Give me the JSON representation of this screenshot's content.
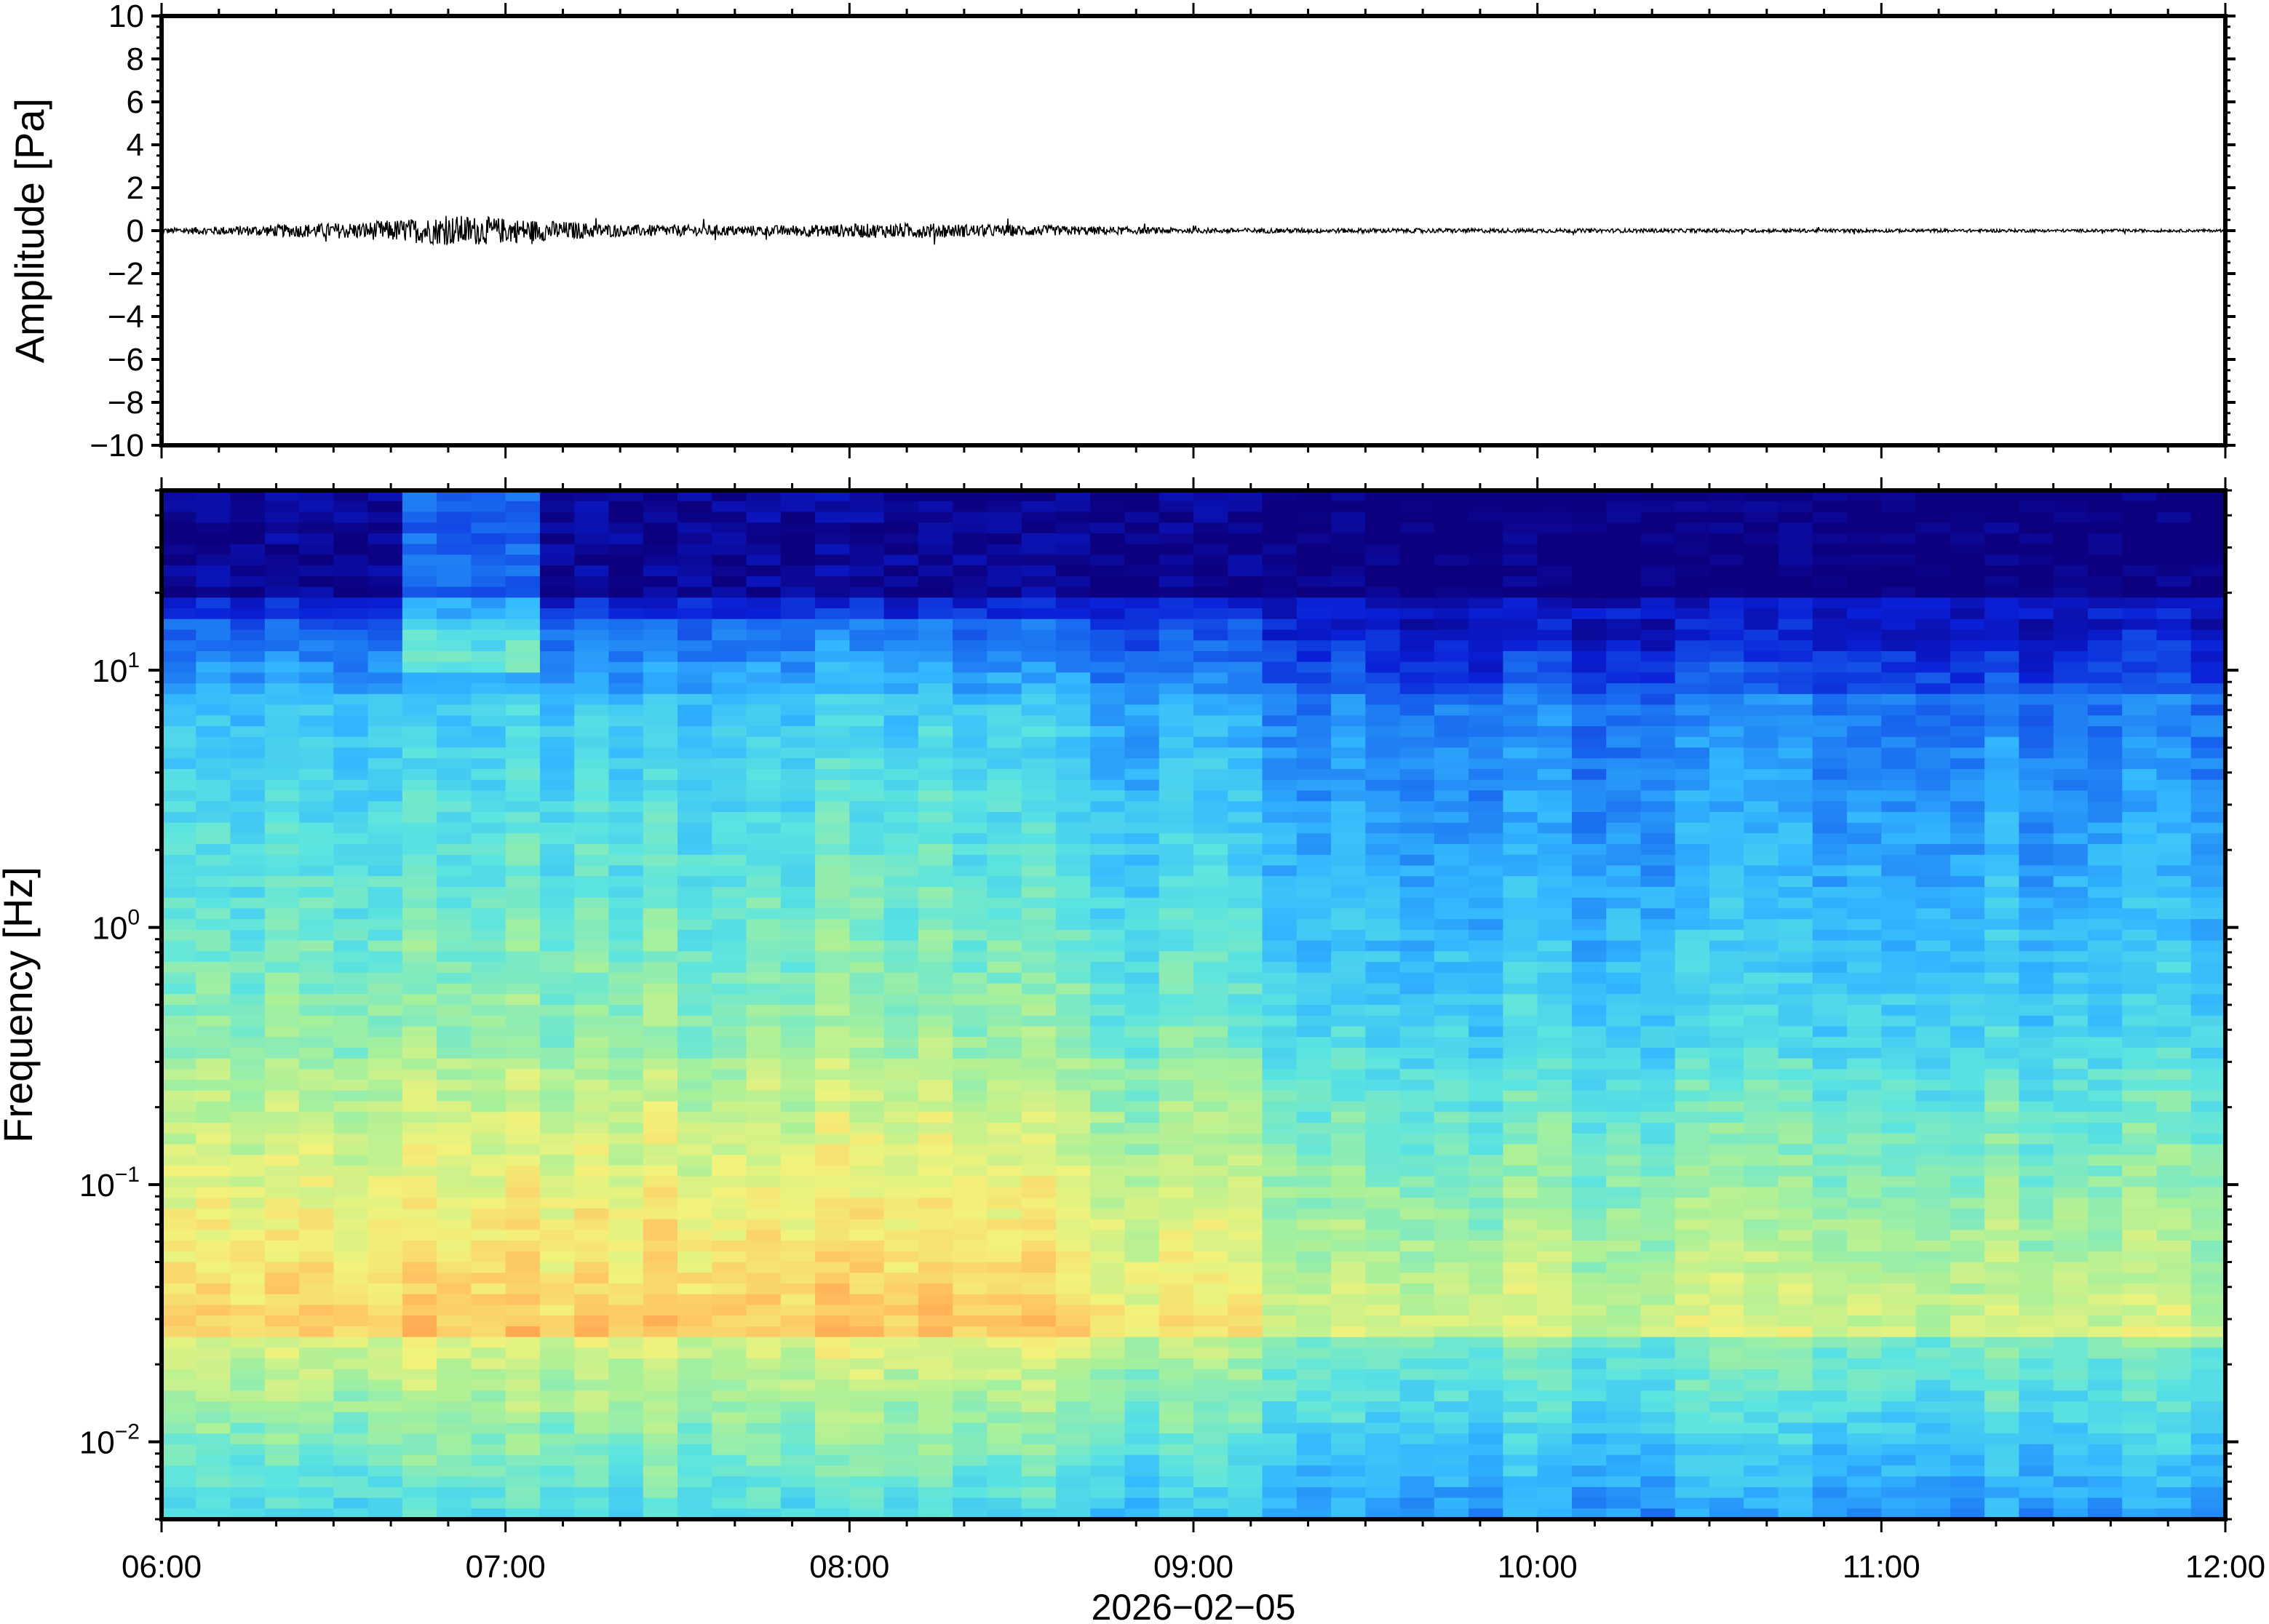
{
  "chart_data": [
    {
      "type": "line",
      "panel": "waveform",
      "ylabel": "Amplitude [Pa]",
      "ylim": [
        -10,
        10
      ],
      "yticks": [
        10,
        8,
        6,
        4,
        2,
        0,
        -2,
        -4,
        -6,
        -8,
        -10
      ],
      "ytick_labels": [
        "10",
        "8",
        "6",
        "4",
        "2",
        "0",
        "−2",
        "−4",
        "−6",
        "−8",
        "−10"
      ],
      "xlim": [
        "06:00",
        "12:00"
      ],
      "series": [
        {
          "x": [
            "06:00",
            "06:35",
            "06:52",
            "07:20",
            "07:45",
            "08:10",
            "08:25",
            "09:00",
            "10:00",
            "11:00",
            "12:00"
          ],
          "envelope": [
            0.15,
            0.5,
            0.9,
            0.35,
            0.3,
            0.45,
            0.35,
            0.15,
            0.12,
            0.1,
            0.08
          ]
        }
      ],
      "color": "#000000"
    },
    {
      "type": "heatmap",
      "panel": "spectrogram",
      "ylabel": "Frequency [Hz]",
      "yscale": "log",
      "ylim": [
        0.005,
        50
      ],
      "yticks": [
        10,
        1,
        0.1,
        0.01
      ],
      "ytick_labels": [
        {
          "base": "10",
          "exp": "1"
        },
        {
          "base": "10",
          "exp": "0"
        },
        {
          "base": "10",
          "exp": "−1"
        },
        {
          "base": "10",
          "exp": "−2"
        }
      ],
      "xlim": [
        "06:00",
        "12:00"
      ],
      "xticks": [
        "06:00",
        "07:00",
        "08:00",
        "09:00",
        "10:00",
        "11:00",
        "12:00"
      ],
      "xlabel": "2026−02−05",
      "colormap": [
        "#0c007f",
        "#0a1fd6",
        "#1a6ff0",
        "#33b8ff",
        "#5ce4e0",
        "#a8f09a",
        "#f2f27a",
        "#ffc060",
        "#ff8a40"
      ],
      "time_columns": 60,
      "freq_rows": 96,
      "description": "Low-frequency band (0.03–0.1 Hz) strongest (orange) between 06:00 and 08:45; high frequencies (>10 Hz) weakest (dark navy) throughout."
    }
  ]
}
